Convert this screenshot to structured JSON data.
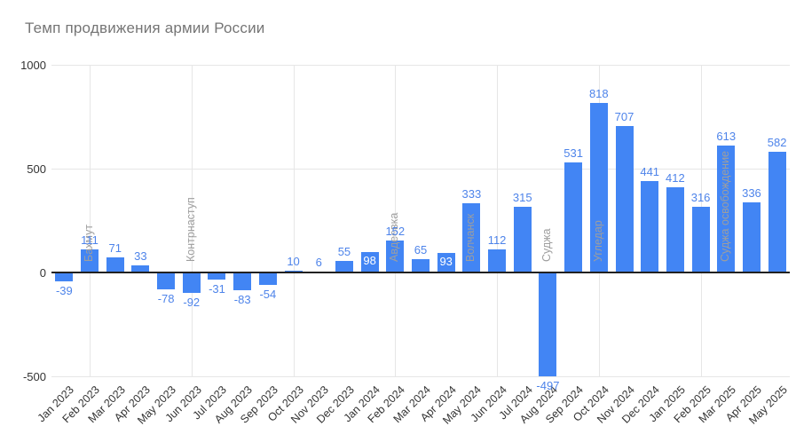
{
  "title": "Темп продвижения армии России",
  "chart_data": {
    "type": "bar",
    "title": "Темп продвижения армии России",
    "categories": [
      "Jan 2023",
      "Feb 2023",
      "Mar 2023",
      "Apr 2023",
      "May 2023",
      "Jun 2023",
      "Jul 2023",
      "Aug 2023",
      "Sep 2023",
      "Oct 2023",
      "Nov 2023",
      "Dec 2023",
      "Jan 2024",
      "Feb 2024",
      "Mar 2024",
      "Apr 2024",
      "May 2024",
      "Jun 2024",
      "Jul 2024",
      "Aug 2024",
      "Sep 2024",
      "Oct 2024",
      "Nov 2024",
      "Dec 2024",
      "Jan 2025",
      "Feb 2025",
      "Mar 2025",
      "Apr 2025",
      "May 2025"
    ],
    "values": [
      -39,
      111,
      71,
      33,
      -78,
      -92,
      -31,
      -83,
      -54,
      10,
      6,
      55,
      98,
      152,
      65,
      93,
      333,
      112,
      315,
      -497,
      531,
      818,
      707,
      441,
      412,
      316,
      613,
      336,
      582
    ],
    "inside_label_indices": [
      12,
      15
    ],
    "annotations": [
      {
        "index": 1,
        "category": "Feb 2023",
        "text": "Бахмут"
      },
      {
        "index": 5,
        "category": "Jun 2023",
        "text": "Контрнаступ"
      },
      {
        "index": 13,
        "category": "Feb 2024",
        "text": "Авдеевка"
      },
      {
        "index": 16,
        "category": "May 2024",
        "text": "Волчанск"
      },
      {
        "index": 19,
        "category": "Aug 2024",
        "text": "Суджа"
      },
      {
        "index": 21,
        "category": "Oct 2024",
        "text": "Угледар"
      },
      {
        "index": 26,
        "category": "Mar 2025",
        "text": "Суджа освобождение"
      }
    ],
    "y_ticks": [
      1000,
      500,
      0,
      -500
    ],
    "ylim": [
      -500,
      1000
    ],
    "x_gridline_indices": [
      1,
      5,
      9,
      13,
      17,
      21,
      25
    ],
    "xlabel": "",
    "ylabel": "",
    "legend_position": "none",
    "grid": true,
    "colors": {
      "bar": "#4285f4",
      "value_label": "#4e84ea",
      "value_label_inside": "#ffffff",
      "annotation": "#9e9e9e",
      "gridline": "#e6e6e6",
      "zero_line": "#212121",
      "axis_text": "#333333",
      "title": "#757575",
      "background": "#ffffff"
    }
  }
}
